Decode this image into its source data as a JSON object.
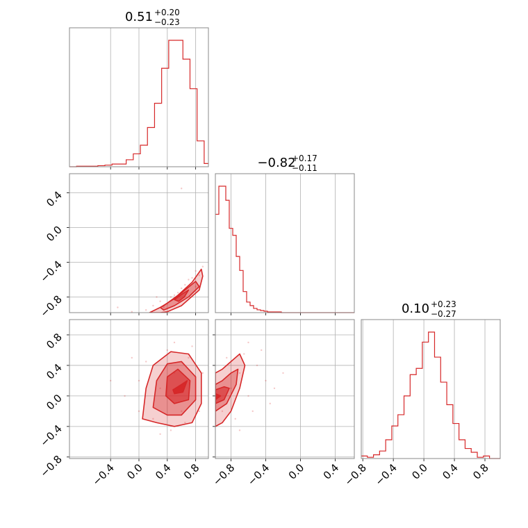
{
  "colors": {
    "series": "#d62728",
    "fill": "#f4a6a6",
    "grid": "#b0b0b0",
    "frame": "#888888"
  },
  "chart_data": {
    "type": "corner",
    "titles": [
      {
        "value": "0.51",
        "plus": "+0.20",
        "minus": "−0.23"
      },
      {
        "value": "−0.82",
        "plus": "+0.17",
        "minus": "−0.11"
      },
      {
        "value": "0.10",
        "plus": "+0.23",
        "minus": "−0.27"
      }
    ],
    "ticks": {
      "p0": [
        "−0.4",
        "0.0",
        "0.4",
        "0.8"
      ],
      "p1": [
        "−0.8",
        "−0.4",
        "0.0",
        "0.4"
      ],
      "p2": [
        "−0.8",
        "−0.4",
        "0.0",
        "0.4",
        "0.8"
      ]
    },
    "ranges": {
      "p0": [
        -0.98,
        0.98
      ],
      "p1": [
        -0.98,
        0.62
      ],
      "p2": [
        -0.82,
        1.0
      ]
    },
    "histograms": [
      {
        "param": "p0",
        "edges": [
          -0.98,
          -0.88,
          -0.78,
          -0.68,
          -0.58,
          -0.48,
          -0.38,
          -0.28,
          -0.18,
          -0.08,
          0.02,
          0.12,
          0.22,
          0.32,
          0.42,
          0.52,
          0.62,
          0.72,
          0.82,
          0.92,
          0.98
        ],
        "counts": [
          0,
          1,
          1,
          1,
          2,
          3,
          5,
          5,
          13,
          24,
          40,
          73,
          118,
          183,
          235,
          235,
          200,
          145,
          48,
          6
        ]
      },
      {
        "param": "p1",
        "edges": [
          -0.98,
          -0.94,
          -0.9,
          -0.86,
          -0.82,
          -0.78,
          -0.74,
          -0.7,
          -0.66,
          -0.62,
          -0.58,
          -0.54,
          -0.5,
          -0.46,
          -0.42,
          -0.38,
          -0.34,
          -0.3,
          -0.26,
          -0.22,
          -0.18,
          -0.14,
          -0.1,
          0.62
        ],
        "counts": [
          140,
          180,
          180,
          160,
          120,
          110,
          80,
          60,
          30,
          15,
          10,
          6,
          4,
          3,
          2,
          1,
          1,
          1,
          1,
          0,
          0,
          0,
          0
        ]
      },
      {
        "param": "p2",
        "edges": [
          -0.82,
          -0.74,
          -0.66,
          -0.58,
          -0.5,
          -0.42,
          -0.34,
          -0.26,
          -0.18,
          -0.1,
          -0.02,
          0.06,
          0.14,
          0.22,
          0.3,
          0.38,
          0.46,
          0.54,
          0.62,
          0.7,
          0.78,
          0.86,
          0.94,
          1.0
        ],
        "counts": [
          2,
          1,
          3,
          6,
          15,
          26,
          35,
          50,
          67,
          72,
          93,
          101,
          81,
          61,
          43,
          28,
          15,
          8,
          5,
          1,
          2,
          0,
          0
        ]
      }
    ],
    "scatter_panels": [
      {
        "x_param": "p0",
        "y_param": "p1",
        "contours": [
          [
            [
              0.15,
              -0.98
            ],
            [
              0.35,
              -0.9
            ],
            [
              0.55,
              -0.78
            ],
            [
              0.75,
              -0.63
            ],
            [
              0.88,
              -0.48
            ],
            [
              0.9,
              -0.56
            ],
            [
              0.85,
              -0.72
            ],
            [
              0.6,
              -0.9
            ],
            [
              0.4,
              -0.97
            ],
            [
              0.3,
              -0.98
            ]
          ],
          [
            [
              0.3,
              -0.92
            ],
            [
              0.5,
              -0.82
            ],
            [
              0.65,
              -0.72
            ],
            [
              0.8,
              -0.62
            ],
            [
              0.85,
              -0.68
            ],
            [
              0.7,
              -0.8
            ],
            [
              0.5,
              -0.9
            ],
            [
              0.35,
              -0.95
            ]
          ],
          [
            [
              0.5,
              -0.83
            ],
            [
              0.62,
              -0.76
            ],
            [
              0.7,
              -0.72
            ],
            [
              0.64,
              -0.8
            ],
            [
              0.56,
              -0.85
            ]
          ]
        ],
        "points": [
          [
            0.3,
            -0.85
          ],
          [
            0.45,
            -0.8
          ],
          [
            0.6,
            -0.7
          ],
          [
            0.2,
            -0.9
          ],
          [
            0.7,
            -0.6
          ],
          [
            0.8,
            -0.5
          ],
          [
            0.55,
            -0.75
          ],
          [
            0.4,
            -0.88
          ],
          [
            0.65,
            -0.66
          ],
          [
            0.85,
            -0.55
          ],
          [
            0.1,
            -0.95
          ],
          [
            0.5,
            -0.78
          ],
          [
            0.75,
            -0.58
          ],
          [
            -0.1,
            -0.97
          ],
          [
            0.6,
            0.45
          ],
          [
            0.35,
            -0.92
          ],
          [
            0.8,
            -0.68
          ],
          [
            -0.3,
            -0.92
          ],
          [
            0.9,
            -0.45
          ],
          [
            0.25,
            -0.8
          ]
        ]
      },
      {
        "x_param": "p0",
        "y_param": "p2",
        "contours": [
          [
            [
              0.05,
              -0.3
            ],
            [
              0.1,
              0.1
            ],
            [
              0.2,
              0.4
            ],
            [
              0.45,
              0.58
            ],
            [
              0.7,
              0.55
            ],
            [
              0.88,
              0.3
            ],
            [
              0.88,
              -0.1
            ],
            [
              0.75,
              -0.35
            ],
            [
              0.5,
              -0.4
            ],
            [
              0.25,
              -0.35
            ]
          ],
          [
            [
              0.2,
              -0.15
            ],
            [
              0.25,
              0.2
            ],
            [
              0.4,
              0.42
            ],
            [
              0.6,
              0.45
            ],
            [
              0.8,
              0.25
            ],
            [
              0.8,
              -0.05
            ],
            [
              0.6,
              -0.25
            ],
            [
              0.4,
              -0.25
            ]
          ],
          [
            [
              0.38,
              0.0
            ],
            [
              0.4,
              0.25
            ],
            [
              0.55,
              0.35
            ],
            [
              0.72,
              0.2
            ],
            [
              0.7,
              -0.05
            ],
            [
              0.5,
              -0.1
            ]
          ],
          [
            [
              0.48,
              0.08
            ],
            [
              0.6,
              0.15
            ],
            [
              0.68,
              0.2
            ],
            [
              0.62,
              0.05
            ],
            [
              0.5,
              0.03
            ]
          ]
        ],
        "points": [
          [
            0.3,
            0.1
          ],
          [
            0.5,
            0.3
          ],
          [
            0.6,
            -0.2
          ],
          [
            0.0,
            0.2
          ],
          [
            0.7,
            0.5
          ],
          [
            0.2,
            -0.3
          ],
          [
            0.8,
            0.0
          ],
          [
            0.4,
            0.6
          ],
          [
            -0.2,
            0.0
          ],
          [
            0.9,
            0.3
          ],
          [
            0.1,
            0.45
          ],
          [
            0.65,
            -0.35
          ],
          [
            -0.4,
            0.2
          ],
          [
            0.3,
            -0.5
          ],
          [
            0.5,
            0.7
          ],
          [
            0.85,
            -0.2
          ],
          [
            0.0,
            -0.2
          ],
          [
            0.45,
            -0.45
          ],
          [
            -0.1,
            0.5
          ],
          [
            0.75,
            0.65
          ]
        ]
      },
      {
        "x_param": "p1",
        "y_param": "p2",
        "contours": [
          [
            [
              -0.98,
              -0.4
            ],
            [
              -0.9,
              -0.35
            ],
            [
              -0.8,
              -0.2
            ],
            [
              -0.7,
              0.1
            ],
            [
              -0.64,
              0.4
            ],
            [
              -0.7,
              0.55
            ],
            [
              -0.8,
              0.45
            ],
            [
              -0.9,
              0.35
            ],
            [
              -0.98,
              0.3
            ]
          ],
          [
            [
              -0.98,
              -0.2
            ],
            [
              -0.85,
              -0.1
            ],
            [
              -0.74,
              0.15
            ],
            [
              -0.72,
              0.35
            ],
            [
              -0.8,
              0.3
            ],
            [
              -0.9,
              0.2
            ],
            [
              -0.98,
              0.15
            ]
          ],
          [
            [
              -0.98,
              -0.1
            ],
            [
              -0.88,
              -0.05
            ],
            [
              -0.82,
              0.1
            ],
            [
              -0.88,
              0.12
            ],
            [
              -0.98,
              0.08
            ]
          ],
          [
            [
              -0.98,
              -0.05
            ],
            [
              -0.92,
              0.0
            ],
            [
              -0.98,
              0.03
            ]
          ]
        ],
        "points": [
          [
            -0.8,
            0.1
          ],
          [
            -0.7,
            0.3
          ],
          [
            -0.6,
            0.0
          ],
          [
            -0.9,
            -0.2
          ],
          [
            -0.5,
            0.4
          ],
          [
            -0.75,
            -0.3
          ],
          [
            -0.65,
            0.55
          ],
          [
            -0.4,
            0.2
          ],
          [
            -0.85,
            0.5
          ],
          [
            -0.55,
            -0.2
          ],
          [
            -0.3,
            0.1
          ],
          [
            -0.7,
            -0.45
          ],
          [
            -0.45,
            0.6
          ],
          [
            -0.2,
            0.3
          ],
          [
            -0.6,
            0.7
          ],
          [
            -0.35,
            -0.1
          ]
        ]
      }
    ]
  }
}
